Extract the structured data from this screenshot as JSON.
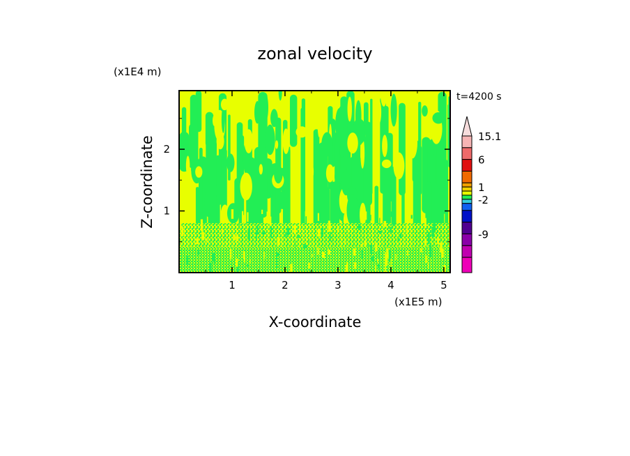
{
  "chart_data": {
    "type": "heatmap",
    "title": "zonal velocity",
    "xlabel": "X-coordinate",
    "ylabel": "Z-coordinate",
    "x_unit": "(x1E5 m)",
    "y_unit": "(x1E4 m)",
    "time_label": "t=4200 s",
    "xlim": [
      0,
      5.12
    ],
    "ylim": [
      0,
      2.95
    ],
    "x_ticks": [
      1,
      2,
      3,
      4,
      5
    ],
    "y_ticks": [
      1,
      2
    ],
    "dominant_levels": [
      {
        "range": "0 to 1",
        "color": "#e8ff00"
      },
      {
        "range": "-1 to 0",
        "color": "#22ee55"
      }
    ],
    "colorbar": {
      "extend": "max",
      "labels": [
        {
          "text": "15.1",
          "value": 15.1
        },
        {
          "text": "6",
          "value": 6
        },
        {
          "text": "1",
          "value": 1
        },
        {
          "text": "-2",
          "value": -2
        },
        {
          "text": "-9",
          "value": -9
        }
      ],
      "bins": [
        {
          "color": "#f6b4b4",
          "label": "15.1"
        },
        {
          "color": "#ee6a6a",
          "label": ""
        },
        {
          "color": "#e01010",
          "label": "6"
        },
        {
          "color": "#f06a00",
          "label": ""
        },
        {
          "color": "#f0a000",
          "label": ""
        },
        {
          "color": "#f0d000",
          "label": "1"
        },
        {
          "color": "#e8ff00",
          "label": ""
        },
        {
          "color": "#22ee55",
          "label": ""
        },
        {
          "color": "#33ccdd",
          "label": "-2"
        },
        {
          "color": "#1060f0",
          "label": ""
        },
        {
          "color": "#0010c8",
          "label": ""
        },
        {
          "color": "#500090",
          "label": ""
        },
        {
          "color": "#8a00a8",
          "label": "-9"
        },
        {
          "color": "#c000b0",
          "label": ""
        },
        {
          "color": "#ee00b8",
          "label": ""
        }
      ]
    }
  }
}
